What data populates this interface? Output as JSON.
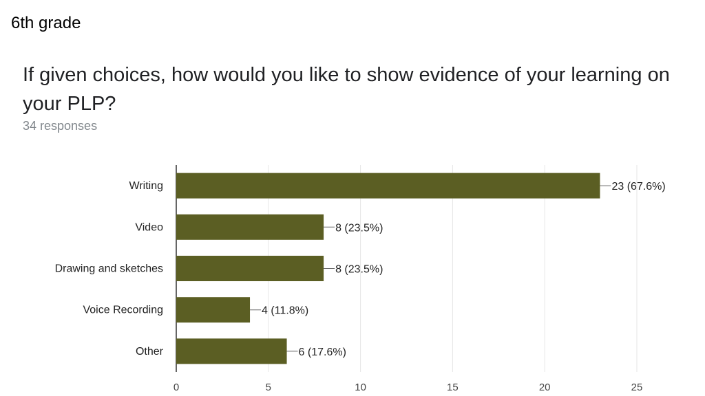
{
  "header": {
    "grade": "6th grade",
    "question": "If given choices, how would you like to show evidence of your learning on your PLP?",
    "responses": "34 responses"
  },
  "chart_data": {
    "type": "bar",
    "orientation": "horizontal",
    "categories": [
      "Writing",
      "Video",
      "Drawing and sketches",
      "Voice Recording",
      "Other"
    ],
    "values": [
      23,
      8,
      8,
      4,
      6
    ],
    "data_labels": [
      "23 (67.6%)",
      "8 (23.5%)",
      "8 (23.5%)",
      "4 (11.8%)",
      "6 (17.6%)"
    ],
    "xlim": [
      0,
      25
    ],
    "xticks": [
      0,
      5,
      10,
      15,
      20,
      25
    ],
    "grid": true,
    "bar_color": "#5b5e23"
  }
}
